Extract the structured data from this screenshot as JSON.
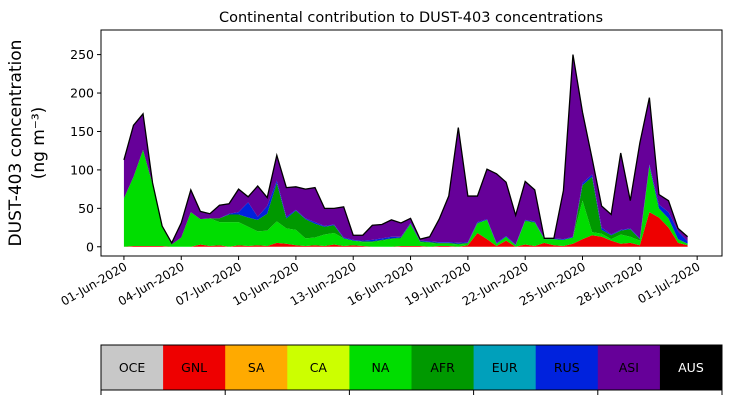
{
  "chart_data": {
    "type": "area",
    "stacked": true,
    "title": "Continental contribution to DUST-403 concentrations",
    "ylabel_line1": "DUST-403 concentration",
    "ylabel_line2": "(ng m⁻³)",
    "xlabel": "",
    "ylim": [
      -12,
      282
    ],
    "yticks": [
      0,
      50,
      100,
      150,
      200,
      250
    ],
    "xlim": [
      -1.2,
      31.3
    ],
    "xticks": [
      {
        "day": 0,
        "label": "01-Jun-2020"
      },
      {
        "day": 3,
        "label": "04-Jun-2020"
      },
      {
        "day": 6,
        "label": "07-Jun-2020"
      },
      {
        "day": 9,
        "label": "10-Jun-2020"
      },
      {
        "day": 12,
        "label": "13-Jun-2020"
      },
      {
        "day": 15,
        "label": "16-Jun-2020"
      },
      {
        "day": 18,
        "label": "19-Jun-2020"
      },
      {
        "day": 21,
        "label": "22-Jun-2020"
      },
      {
        "day": 24,
        "label": "25-Jun-2020"
      },
      {
        "day": 27,
        "label": "28-Jun-2020"
      },
      {
        "day": 30,
        "label": "01-Jul-2020"
      }
    ],
    "x_days": [
      0,
      0.5,
      1,
      1.5,
      2,
      2.5,
      3,
      3.5,
      4,
      4.5,
      5,
      5.5,
      6,
      6.5,
      7,
      7.5,
      8,
      8.5,
      9,
      9.5,
      10,
      10.5,
      11,
      11.5,
      12,
      12.5,
      13,
      13.5,
      14,
      14.5,
      15,
      15.5,
      16,
      16.5,
      17,
      17.5,
      18,
      18.5,
      19,
      19.5,
      20,
      20.5,
      21,
      21.5,
      22,
      22.5,
      23,
      23.5,
      24,
      24.5,
      25,
      25.5,
      26,
      26.5,
      27,
      27.5,
      28,
      28.5,
      29,
      29.5
    ],
    "grid": false,
    "series": [
      {
        "name": "OCE",
        "color": "#c8c8c8",
        "values": [
          0,
          0,
          0,
          0,
          0,
          0,
          0,
          0,
          0,
          0,
          0,
          0,
          0,
          0,
          0,
          0,
          0,
          0,
          0,
          0,
          0,
          0,
          0,
          0,
          0,
          0,
          0,
          0,
          0,
          0,
          0,
          0,
          0,
          0,
          0,
          0,
          0,
          0,
          0,
          0,
          0,
          0,
          0,
          0,
          0,
          0,
          0,
          0,
          0,
          0,
          0,
          0,
          0,
          0,
          0,
          0,
          0,
          0,
          0,
          0
        ]
      },
      {
        "name": "GNL",
        "color": "#ee0000",
        "values": [
          0,
          1,
          1,
          1,
          1,
          0,
          0,
          0,
          3,
          1,
          2,
          0,
          2,
          1,
          2,
          1,
          5,
          4,
          2,
          1,
          2,
          1,
          3,
          1,
          2,
          1,
          0,
          0,
          0,
          1,
          1,
          1,
          0,
          1,
          1,
          0,
          2,
          18,
          10,
          1,
          8,
          0,
          3,
          1,
          5,
          2,
          1,
          4,
          10,
          15,
          13,
          8,
          4,
          5,
          2,
          45,
          38,
          25,
          5,
          2
        ]
      },
      {
        "name": "SA",
        "color": "#ffaa00",
        "values": [
          0,
          0,
          0,
          0,
          0,
          0,
          0,
          0,
          0,
          0,
          0,
          0,
          0,
          0,
          0,
          0,
          0,
          0,
          0,
          0,
          0,
          0,
          0,
          0,
          0,
          0,
          0,
          0,
          0,
          0,
          0,
          0,
          0,
          0,
          0,
          0,
          0,
          0,
          0,
          0,
          0,
          0,
          0,
          0,
          0,
          0,
          0,
          0,
          0,
          0,
          0,
          0,
          0,
          0,
          0,
          0,
          0,
          0,
          0,
          0
        ]
      },
      {
        "name": "CA",
        "color": "#ccff00",
        "values": [
          0,
          0,
          0,
          0,
          0,
          0,
          0,
          0,
          0,
          0,
          0,
          0,
          0,
          0,
          0,
          0,
          0,
          0,
          0,
          0,
          0,
          0,
          0,
          0,
          0,
          0,
          0,
          0,
          0,
          0,
          0,
          0,
          0,
          0,
          0,
          0,
          0,
          0,
          0,
          0,
          0,
          0,
          0,
          0,
          0,
          0,
          0,
          0,
          0,
          0,
          0,
          0,
          0,
          0,
          0,
          0,
          0,
          0,
          0,
          0
        ]
      },
      {
        "name": "NA",
        "color": "#00dd00",
        "values": [
          63,
          90,
          125,
          80,
          25,
          3,
          12,
          45,
          33,
          36,
          30,
          32,
          30,
          25,
          18,
          20,
          28,
          20,
          20,
          10,
          10,
          15,
          15,
          10,
          6,
          5,
          6,
          8,
          10,
          10,
          28,
          5,
          5,
          3,
          3,
          3,
          2,
          12,
          25,
          3,
          5,
          2,
          30,
          30,
          5,
          8,
          8,
          8,
          50,
          4,
          4,
          2,
          12,
          8,
          6,
          60,
          12,
          12,
          5,
          2
        ]
      },
      {
        "name": "AFR",
        "color": "#009900",
        "values": [
          0,
          0,
          0,
          0,
          0,
          0,
          0,
          0,
          0,
          0,
          5,
          10,
          10,
          12,
          15,
          22,
          50,
          13,
          25,
          25,
          18,
          10,
          10,
          0,
          0,
          1,
          1,
          1,
          1,
          1,
          1,
          1,
          1,
          1,
          1,
          1,
          1,
          1,
          0,
          0,
          0,
          0,
          1,
          1,
          0,
          0,
          0,
          0,
          20,
          72,
          5,
          5,
          5,
          10,
          2,
          0,
          0,
          0,
          0,
          0
        ]
      },
      {
        "name": "EUR",
        "color": "#00a0bb",
        "values": [
          0,
          0,
          0,
          0,
          0,
          0,
          0,
          0,
          0,
          0,
          0,
          0,
          0,
          0,
          0,
          0,
          0,
          0,
          0,
          0,
          0,
          0,
          0,
          0,
          0,
          0,
          0,
          0,
          0,
          0,
          0,
          0,
          0,
          0,
          0,
          0,
          0,
          0,
          0,
          0,
          0,
          0,
          0,
          0,
          0,
          0,
          0,
          0,
          0,
          0,
          0,
          0,
          0,
          0,
          0,
          0,
          0,
          0,
          0,
          0
        ]
      },
      {
        "name": "RUS",
        "color": "#0022dd",
        "values": [
          0,
          0,
          0,
          0,
          0,
          0,
          0,
          0,
          0,
          0,
          0,
          1,
          3,
          20,
          4,
          10,
          3,
          2,
          1,
          1,
          2,
          1,
          1,
          1,
          1,
          1,
          2,
          2,
          2,
          1,
          1,
          1,
          1,
          1,
          1,
          1,
          1,
          1,
          1,
          1,
          1,
          1,
          1,
          1,
          1,
          1,
          1,
          1,
          3,
          3,
          3,
          1,
          1,
          1,
          1,
          2,
          5,
          8,
          10,
          3
        ]
      },
      {
        "name": "ASI",
        "color": "#660099",
        "values": [
          50,
          67,
          47,
          2,
          1,
          2,
          19,
          29,
          10,
          6,
          17,
          13,
          30,
          7,
          40,
          11,
          33,
          38,
          30,
          38,
          45,
          23,
          21,
          40,
          6,
          7,
          19,
          18,
          22,
          18,
          6,
          2,
          6,
          30,
          60,
          150,
          60,
          34,
          65,
          90,
          70,
          38,
          50,
          41,
          0,
          0,
          63,
          237,
          92,
          21,
          28,
          26,
          100,
          36,
          124,
          87,
          13,
          15,
          4,
          6
        ]
      },
      {
        "name": "AUS",
        "color": "#000000",
        "values": [
          0,
          0,
          0,
          0,
          0,
          0,
          0,
          0,
          0,
          0,
          0,
          0,
          0,
          0,
          0,
          0,
          0,
          0,
          0,
          0,
          0,
          0,
          0,
          0,
          0,
          0,
          0,
          0,
          0,
          0,
          0,
          0,
          0,
          0,
          0,
          0,
          0,
          0,
          0,
          0,
          0,
          0,
          0,
          0,
          0,
          0,
          0,
          0,
          0,
          0,
          0,
          0,
          0,
          0,
          0,
          0,
          0,
          0,
          0,
          0
        ]
      }
    ]
  }
}
